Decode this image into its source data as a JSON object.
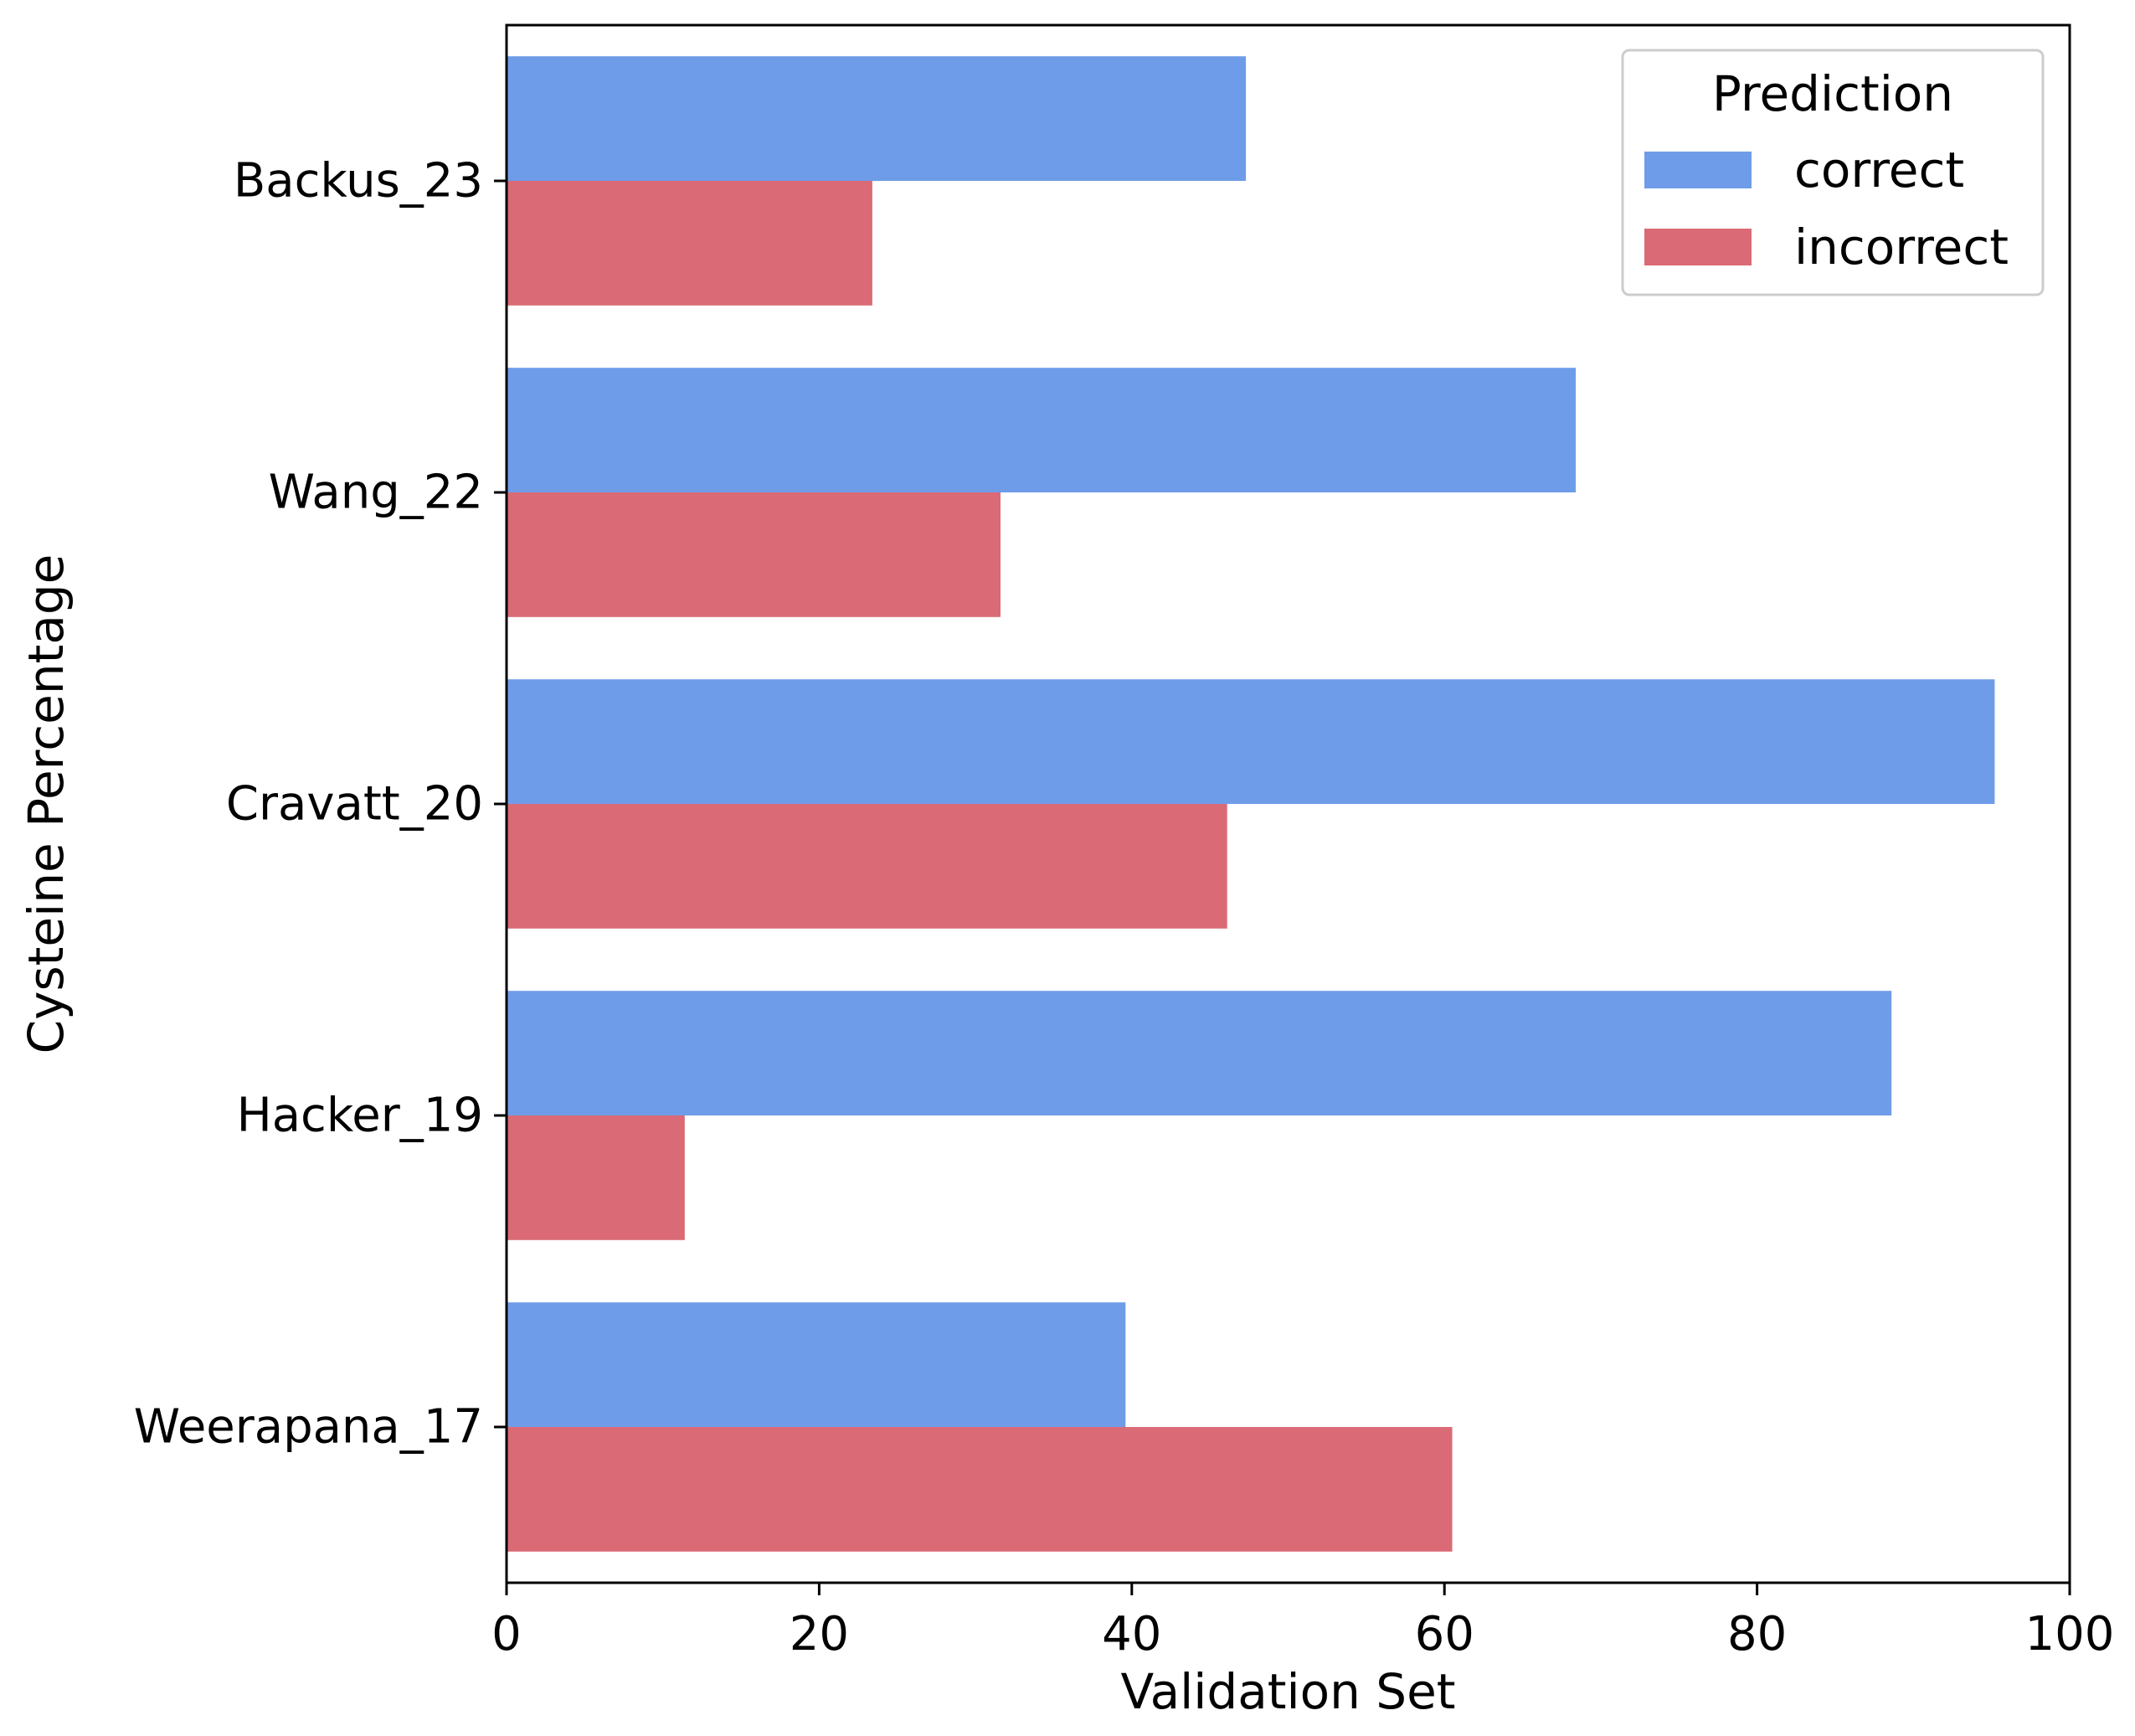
{
  "chart_data": {
    "type": "bar",
    "orientation": "horizontal",
    "categories": [
      "Backus_23",
      "Wang_22",
      "Cravatt_20",
      "Hacker_19",
      "Weerapana_17"
    ],
    "series": [
      {
        "name": "correct",
        "values": [
          47.3,
          68.4,
          95.2,
          88.6,
          39.6
        ],
        "color": "#6f9ce8"
      },
      {
        "name": "incorrect",
        "values": [
          23.4,
          31.6,
          46.1,
          11.4,
          60.5
        ],
        "color": "#da6a75"
      }
    ],
    "xlabel": "Validation Set",
    "ylabel": "Cysteine Percentage",
    "xlim": [
      0,
      100
    ],
    "xticks": [
      "0",
      "20",
      "40",
      "60",
      "80",
      "100"
    ],
    "grid": false,
    "legend": {
      "title": "Prediction",
      "placement": "top-right"
    }
  }
}
